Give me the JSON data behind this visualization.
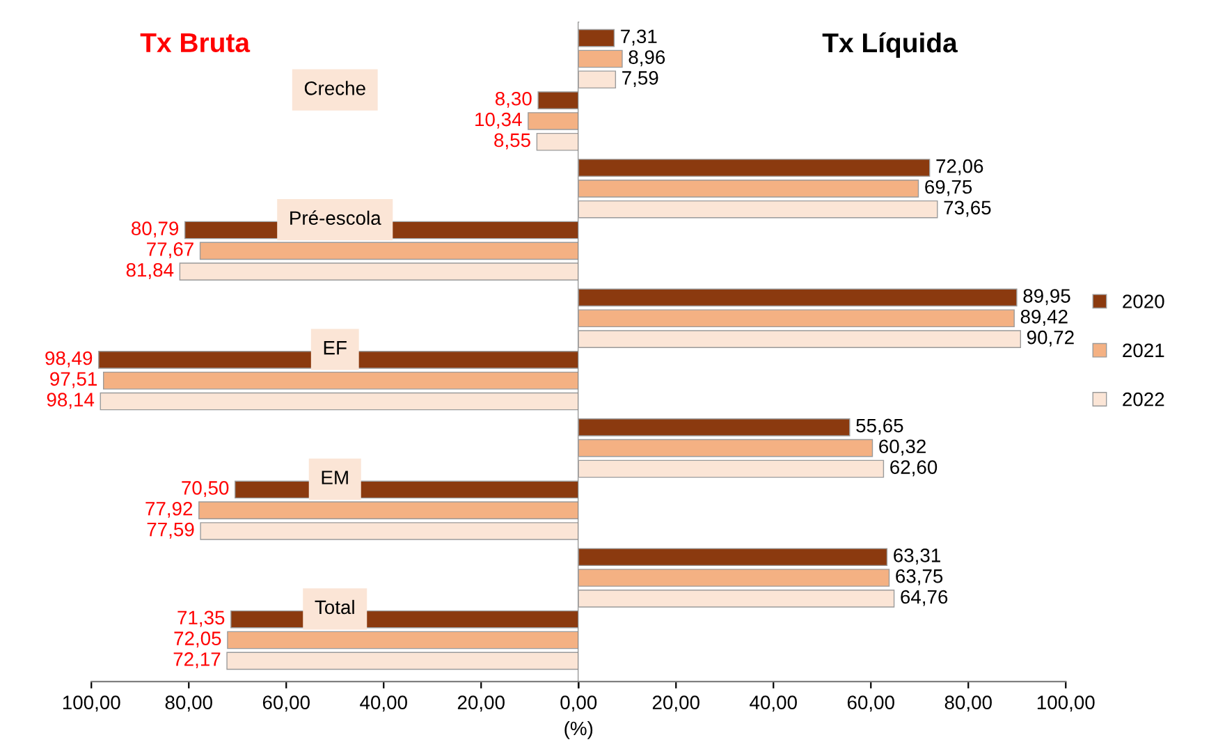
{
  "chart_data": [
    {
      "type": "bar",
      "orientation": "horizontal",
      "categories": [
        "Creche",
        "Pré-escola",
        "EF",
        "EM",
        "Total"
      ],
      "series": [
        {
          "color": "#8b3a0f",
          "values": [
            8.3,
            80.79,
            98.49,
            70.5,
            71.35
          ],
          "value_labels": [
            "8,30",
            "80,79",
            "98,49",
            "70,50",
            "71,35"
          ]
        },
        {
          "color": "#f4b183",
          "values": [
            10.34,
            77.67,
            97.51,
            77.92,
            72.05
          ],
          "value_labels": [
            "10,34",
            "77,67",
            "97,51",
            "77,92",
            "72,05"
          ]
        },
        {
          "color": "#fbe5d6",
          "values": [
            8.55,
            81.84,
            98.14,
            77.59,
            72.17
          ],
          "value_labels": [
            "8,55",
            "81,84",
            "98,14",
            "77,59",
            "72,17"
          ]
        }
      ],
      "annotations": [
        "Tx Bruta"
      ],
      "xlim": [
        100,
        0
      ],
      "xticks": [
        {
          "value": 100,
          "label": "100,00"
        },
        {
          "value": 80,
          "label": "80,00"
        },
        {
          "value": 60,
          "label": "60,00"
        },
        {
          "value": 40,
          "label": "40,00"
        },
        {
          "value": 20,
          "label": "20,00"
        },
        {
          "value": 0,
          "label": null
        }
      ]
    },
    {
      "type": "bar",
      "orientation": "horizontal",
      "categories": [
        null,
        null,
        null,
        null,
        null
      ],
      "series": [
        {
          "name": "2020",
          "color": "#8b3a0f",
          "values": [
            7.31,
            72.06,
            89.95,
            55.65,
            63.31
          ],
          "value_labels": [
            "7,31",
            "72,06",
            "89,95",
            "55,65",
            "63,31"
          ]
        },
        {
          "name": "2021",
          "color": "#f4b183",
          "values": [
            8.96,
            69.75,
            89.42,
            60.32,
            63.75
          ],
          "value_labels": [
            "8,96",
            "69,75",
            "89,42",
            "60,32",
            "63,75"
          ]
        },
        {
          "name": "2022",
          "color": "#fbe5d6",
          "values": [
            7.59,
            73.65,
            90.72,
            62.6,
            64.76
          ],
          "value_labels": [
            "7,59",
            "73,65",
            "90,72",
            "62,60",
            "64,76"
          ]
        }
      ],
      "xlabel": "(%)",
      "annotations": [
        "Tx Líquida"
      ],
      "xlim": [
        0,
        100
      ],
      "xticks": [
        {
          "value": 0,
          "label": "0,00"
        },
        {
          "value": 20,
          "label": "20,00"
        },
        {
          "value": 40,
          "label": "40,00"
        },
        {
          "value": 60,
          "label": "60,00"
        },
        {
          "value": 80,
          "label": "80,00"
        },
        {
          "value": 100,
          "label": "100,00"
        }
      ],
      "legend": "right"
    }
  ]
}
